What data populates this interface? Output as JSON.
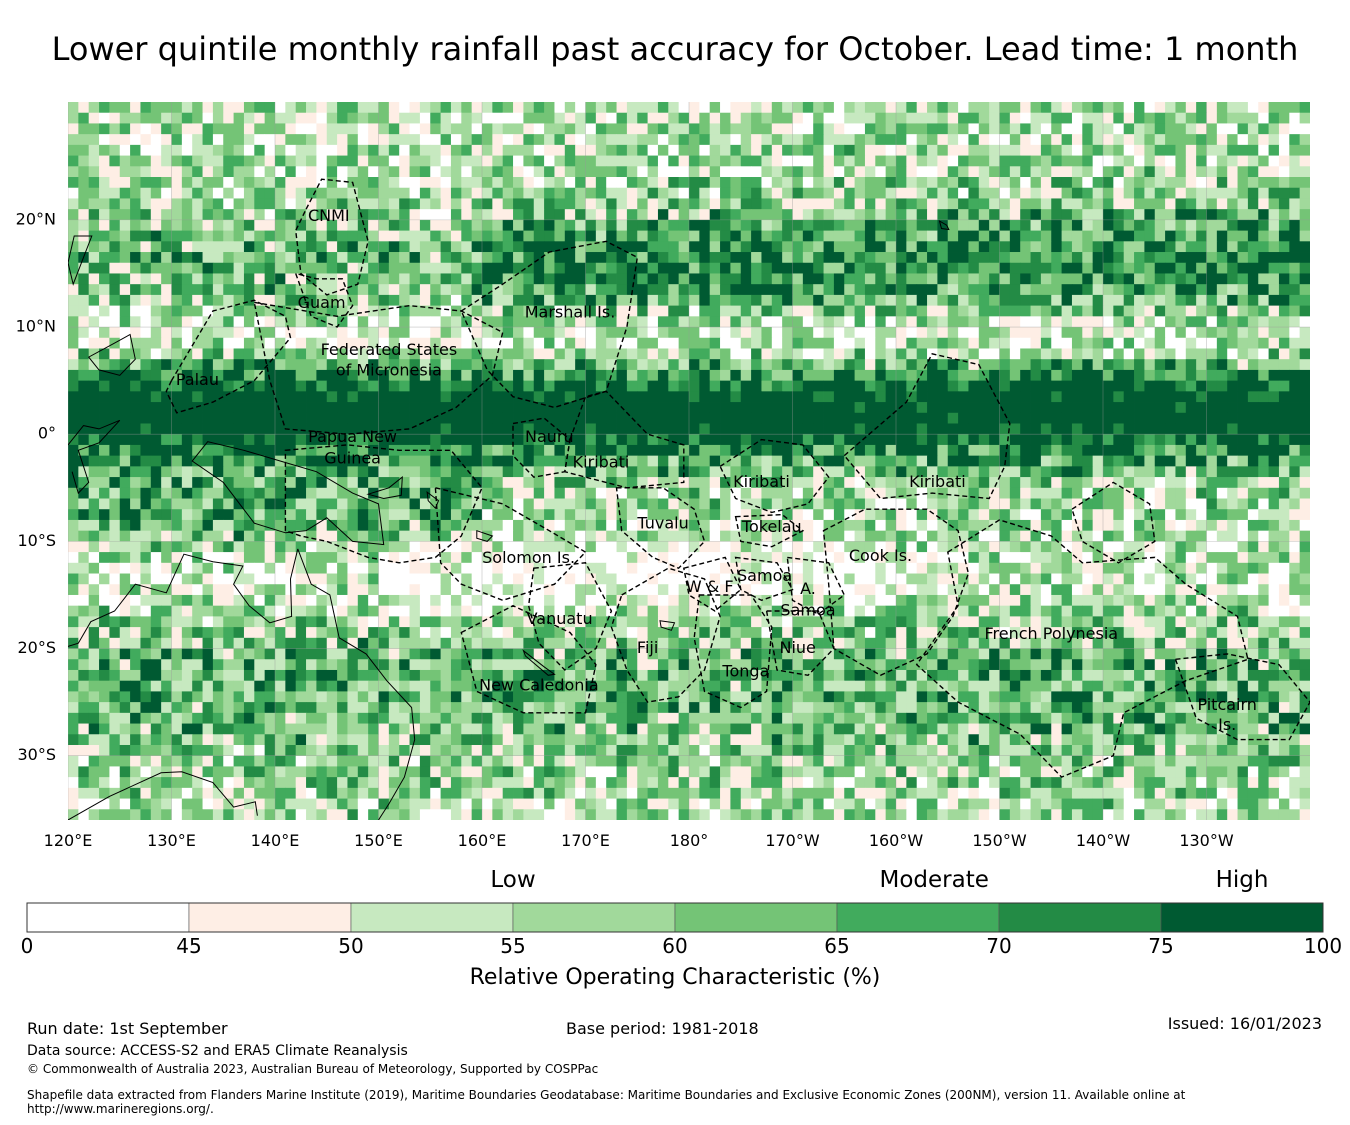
{
  "title": "Lower quintile monthly rainfall past accuracy for October. Lead time: 1 month",
  "map": {
    "lon_range": [
      120,
      240
    ],
    "lat_range": [
      -36,
      31
    ],
    "lon_ticks": [
      {
        "value": 120,
        "label": "120°E"
      },
      {
        "value": 130,
        "label": "130°E"
      },
      {
        "value": 140,
        "label": "140°E"
      },
      {
        "value": 150,
        "label": "150°E"
      },
      {
        "value": 160,
        "label": "160°E"
      },
      {
        "value": 170,
        "label": "170°E"
      },
      {
        "value": 180,
        "label": "180°"
      },
      {
        "value": 190,
        "label": "170°W"
      },
      {
        "value": 200,
        "label": "160°W"
      },
      {
        "value": 210,
        "label": "150°W"
      },
      {
        "value": 220,
        "label": "140°W"
      },
      {
        "value": 230,
        "label": "130°W"
      }
    ],
    "lat_ticks": [
      {
        "value": 20,
        "label": "20°N"
      },
      {
        "value": 10,
        "label": "10°N"
      },
      {
        "value": 0,
        "label": "0°"
      },
      {
        "value": -10,
        "label": "10°S"
      },
      {
        "value": -20,
        "label": "20°S"
      },
      {
        "value": -30,
        "label": "30°S"
      }
    ],
    "regions": [
      {
        "name": "CNMI",
        "lon": 145.2,
        "lat": 20.3
      },
      {
        "name": "Guam",
        "lon": 144.5,
        "lat": 12.2
      },
      {
        "name": "Marshall Is.",
        "lon": 168.5,
        "lat": 11.3
      },
      {
        "name": "Federated States",
        "lon": 151,
        "lat": 7.8
      },
      {
        "name": "of Micronesia",
        "lon": 151,
        "lat": 5.9
      },
      {
        "name": "Palau",
        "lon": 132.5,
        "lat": 5.0
      },
      {
        "name": "Papua New",
        "lon": 147.5,
        "lat": -0.3
      },
      {
        "name": "Guinea",
        "lon": 147.5,
        "lat": -2.3
      },
      {
        "name": "Nauru",
        "lon": 166.5,
        "lat": -0.3
      },
      {
        "name": "Kiribati",
        "lon": 171.5,
        "lat": -2.7
      },
      {
        "name": "Kiribati",
        "lon": 187,
        "lat": -4.5
      },
      {
        "name": "Kiribati",
        "lon": 204,
        "lat": -4.5
      },
      {
        "name": "Tuvalu",
        "lon": 177.5,
        "lat": -8.4
      },
      {
        "name": "Tokelau",
        "lon": 188,
        "lat": -8.7
      },
      {
        "name": "Solomon Is.",
        "lon": 164.5,
        "lat": -11.6
      },
      {
        "name": "Cook Is.",
        "lon": 198.5,
        "lat": -11.4
      },
      {
        "name": "Samoa",
        "lon": 187.3,
        "lat": -13.3
      },
      {
        "name": "W & F",
        "lon": 182,
        "lat": -14.3
      },
      {
        "name": "A.",
        "lon": 191.5,
        "lat": -14.5
      },
      {
        "name": "Samoa",
        "lon": 191.5,
        "lat": -16.5
      },
      {
        "name": "Vanuatu",
        "lon": 167.5,
        "lat": -17.3
      },
      {
        "name": "French Polynesia",
        "lon": 215,
        "lat": -18.7
      },
      {
        "name": "Fiji",
        "lon": 176,
        "lat": -20.0
      },
      {
        "name": "Niue",
        "lon": 190.5,
        "lat": -20.0
      },
      {
        "name": "Tonga",
        "lon": 185.5,
        "lat": -22.2
      },
      {
        "name": "New Caledonia",
        "lon": 165.5,
        "lat": -23.5
      },
      {
        "name": "Pitcairn",
        "lon": 232,
        "lat": -25.3
      },
      {
        "name": "Is.",
        "lon": 232,
        "lat": -27.2
      }
    ]
  },
  "legend": {
    "categories": [
      {
        "label": "Low",
        "center_value": 55
      },
      {
        "label": "Moderate",
        "center_value": 68
      },
      {
        "label": "High",
        "center_value": 87.5
      }
    ],
    "bins": [
      {
        "from": 0,
        "to": 45,
        "color": "#ffffff"
      },
      {
        "from": 45,
        "to": 50,
        "color": "#feeee5"
      },
      {
        "from": 50,
        "to": 55,
        "color": "#c7e9c0"
      },
      {
        "from": 55,
        "to": 60,
        "color": "#a1d99b"
      },
      {
        "from": 60,
        "to": 65,
        "color": "#74c476"
      },
      {
        "from": 65,
        "to": 70,
        "color": "#41ab5d"
      },
      {
        "from": 70,
        "to": 75,
        "color": "#238b45"
      },
      {
        "from": 75,
        "to": 100,
        "color": "#005a32"
      }
    ],
    "tick_labels": [
      "0",
      "45",
      "50",
      "55",
      "60",
      "65",
      "70",
      "75",
      "100"
    ],
    "title": "Relative Operating Characteristic (%)"
  },
  "footer": {
    "run_date": "Run date: 1st September",
    "base_period": "Base period: 1981-2018",
    "issued": "Issued: 16/01/2023",
    "data_source": "Data source: ACCESS-S2 and ERA5 Climate Reanalysis",
    "copyright": "© Commonwealth of Australia 2023, Australian Bureau of Meteorology, Supported by COSPPac",
    "shapefile_line1": "Shapefile data extracted from Flanders Marine Institute (2019), Maritime Boundaries Geodatabase: Maritime Boundaries and Exclusive Economic Zones (200NM), version 11. Available online at",
    "shapefile_line2": "http://www.marineregions.org/."
  }
}
